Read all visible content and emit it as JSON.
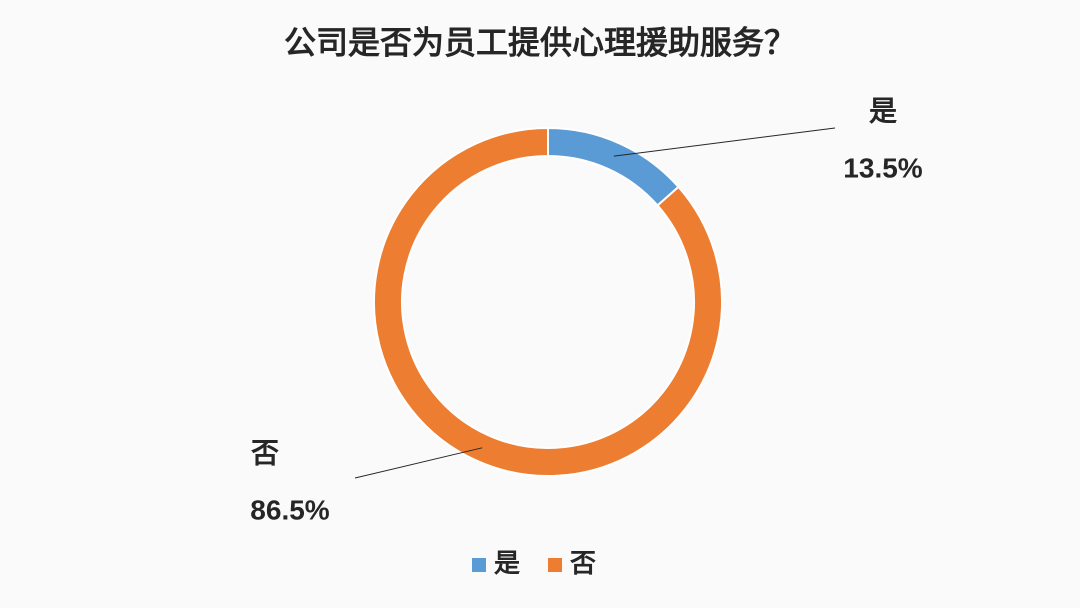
{
  "chart_data": {
    "type": "donut",
    "title": "公司是否为员工提供心理援助服务？",
    "categories": [
      "是",
      "否"
    ],
    "values": [
      13.5,
      86.5
    ],
    "value_labels": [
      "13.5%",
      "86.5%"
    ],
    "colors": [
      "#5b9bd5",
      "#ed7d31"
    ],
    "legend": "bottom"
  }
}
